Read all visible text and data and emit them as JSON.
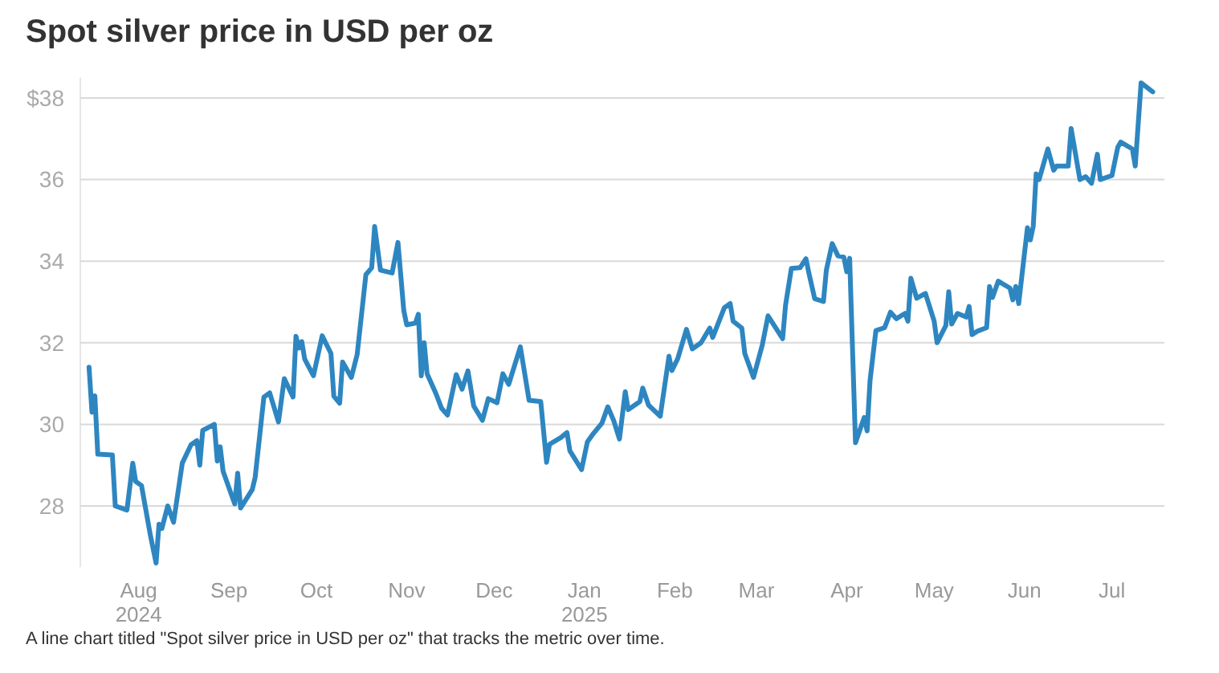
{
  "chart_data": {
    "type": "line",
    "title": "Spot silver price in USD per oz",
    "annotations": [
      "A line chart titled \"Spot silver price in USD per oz\" that tracks the metric over time."
    ],
    "x": [
      "2024-07-15",
      "2024-07-16",
      "2024-07-17",
      "2024-07-18",
      "2024-07-23",
      "2024-07-24",
      "2024-07-28",
      "2024-07-30",
      "2024-07-31",
      "2024-08-02",
      "2024-08-05",
      "2024-08-07",
      "2024-08-08",
      "2024-08-09",
      "2024-08-11",
      "2024-08-13",
      "2024-08-16",
      "2024-08-19",
      "2024-08-21",
      "2024-08-22",
      "2024-08-23",
      "2024-08-27",
      "2024-08-28",
      "2024-08-29",
      "2024-08-30",
      "2024-09-01",
      "2024-09-03",
      "2024-09-04",
      "2024-09-05",
      "2024-09-09",
      "2024-09-10",
      "2024-09-13",
      "2024-09-15",
      "2024-09-18",
      "2024-09-20",
      "2024-09-23",
      "2024-09-24",
      "2024-09-25",
      "2024-09-26",
      "2024-09-27",
      "2024-09-30",
      "2024-10-03",
      "2024-10-06",
      "2024-10-07",
      "2024-10-09",
      "2024-10-10",
      "2024-10-13",
      "2024-10-15",
      "2024-10-18",
      "2024-10-20",
      "2024-10-21",
      "2024-10-23",
      "2024-10-27",
      "2024-10-29",
      "2024-10-31",
      "2024-11-01",
      "2024-11-04",
      "2024-11-05",
      "2024-11-06",
      "2024-11-07",
      "2024-11-08",
      "2024-11-11",
      "2024-11-13",
      "2024-11-15",
      "2024-11-18",
      "2024-11-20",
      "2024-11-22",
      "2024-11-24",
      "2024-11-27",
      "2024-11-29",
      "2024-12-02",
      "2024-12-04",
      "2024-12-06",
      "2024-12-10",
      "2024-12-13",
      "2024-12-17",
      "2024-12-19",
      "2024-12-20",
      "2024-12-24",
      "2024-12-26",
      "2024-12-27",
      "2024-12-31",
      "2025-01-02",
      "2025-01-04",
      "2025-01-07",
      "2025-01-09",
      "2025-01-11",
      "2025-01-13",
      "2025-01-15",
      "2025-01-16",
      "2025-01-20",
      "2025-01-21",
      "2025-01-23",
      "2025-01-27",
      "2025-01-30",
      "2025-01-31",
      "2025-02-02",
      "2025-02-05",
      "2025-02-07",
      "2025-02-10",
      "2025-02-13",
      "2025-02-14",
      "2025-02-18",
      "2025-02-20",
      "2025-02-21",
      "2025-02-24",
      "2025-02-25",
      "2025-02-28",
      "2025-03-03",
      "2025-03-05",
      "2025-03-10",
      "2025-03-11",
      "2025-03-13",
      "2025-03-16",
      "2025-03-18",
      "2025-03-19",
      "2025-03-21",
      "2025-03-24",
      "2025-03-25",
      "2025-03-27",
      "2025-03-29",
      "2025-03-31",
      "2025-04-01",
      "2025-04-02",
      "2025-04-04",
      "2025-04-07",
      "2025-04-08",
      "2025-04-09",
      "2025-04-11",
      "2025-04-14",
      "2025-04-16",
      "2025-04-18",
      "2025-04-21",
      "2025-04-22",
      "2025-04-23",
      "2025-04-25",
      "2025-04-28",
      "2025-05-01",
      "2025-05-02",
      "2025-05-05",
      "2025-05-06",
      "2025-05-07",
      "2025-05-09",
      "2025-05-12",
      "2025-05-13",
      "2025-05-14",
      "2025-05-16",
      "2025-05-19",
      "2025-05-20",
      "2025-05-21",
      "2025-05-23",
      "2025-05-27",
      "2025-05-28",
      "2025-05-29",
      "2025-05-30",
      "2025-06-02",
      "2025-06-03",
      "2025-06-04",
      "2025-06-05",
      "2025-06-06",
      "2025-06-09",
      "2025-06-11",
      "2025-06-12",
      "2025-06-16",
      "2025-06-17",
      "2025-06-20",
      "2025-06-22",
      "2025-06-24",
      "2025-06-26",
      "2025-06-27",
      "2025-07-01",
      "2025-07-03",
      "2025-07-04",
      "2025-07-08",
      "2025-07-09",
      "2025-07-11",
      "2025-07-15"
    ],
    "series": [
      {
        "color": "#2e86c1",
        "values": [
          31.4,
          30.3,
          30.7,
          29.27,
          29.25,
          28.0,
          27.9,
          29.05,
          28.6,
          28.5,
          27.3,
          26.6,
          27.55,
          27.45,
          28.0,
          27.6,
          29.05,
          29.5,
          29.6,
          29.0,
          29.85,
          30.0,
          29.1,
          29.45,
          28.85,
          28.45,
          28.05,
          28.8,
          27.95,
          28.4,
          28.7,
          30.67,
          30.77,
          30.06,
          31.12,
          30.67,
          32.16,
          31.87,
          32.03,
          31.6,
          31.19,
          32.17,
          31.74,
          30.69,
          30.52,
          31.53,
          31.15,
          31.71,
          33.67,
          33.84,
          34.85,
          33.78,
          33.71,
          34.46,
          32.79,
          32.44,
          32.48,
          32.7,
          31.19,
          32.0,
          31.24,
          30.76,
          30.39,
          30.23,
          31.22,
          30.86,
          31.31,
          30.45,
          30.1,
          30.63,
          30.53,
          31.24,
          30.98,
          31.9,
          30.59,
          30.56,
          29.07,
          29.51,
          29.68,
          29.8,
          29.35,
          28.89,
          29.57,
          29.77,
          30.03,
          30.43,
          30.1,
          29.64,
          30.8,
          30.36,
          30.56,
          30.89,
          30.47,
          30.2,
          31.67,
          31.32,
          31.61,
          32.33,
          31.85,
          32.0,
          32.36,
          32.13,
          32.86,
          32.96,
          32.53,
          32.36,
          31.74,
          31.15,
          31.94,
          32.66,
          32.1,
          32.92,
          33.82,
          33.84,
          34.06,
          33.71,
          33.08,
          33.01,
          33.78,
          34.43,
          34.13,
          34.1,
          33.74,
          34.07,
          29.55,
          30.17,
          29.84,
          31.08,
          32.3,
          32.37,
          32.75,
          32.59,
          32.72,
          32.53,
          33.58,
          33.09,
          33.21,
          32.53,
          32.0,
          32.42,
          33.25,
          32.46,
          32.72,
          32.63,
          32.89,
          32.2,
          32.29,
          32.37,
          33.38,
          33.11,
          33.51,
          33.34,
          33.05,
          33.38,
          32.96,
          34.82,
          34.52,
          34.86,
          36.14,
          36.0,
          36.75,
          36.23,
          36.33,
          36.33,
          37.25,
          36.0,
          36.07,
          35.91,
          36.62,
          36.0,
          36.1,
          36.79,
          36.92,
          36.75,
          36.33,
          38.37,
          38.15
        ]
      }
    ],
    "xlim": [
      "2024-07-12",
      "2025-07-19"
    ],
    "xticks": [
      {
        "value": "2024-08-01",
        "label": "Aug\n2024"
      },
      {
        "value": "2024-09-01",
        "label": "Sep"
      },
      {
        "value": "2024-10-01",
        "label": "Oct"
      },
      {
        "value": "2024-11-01",
        "label": "Nov"
      },
      {
        "value": "2024-12-01",
        "label": "Dec"
      },
      {
        "value": "2025-01-01",
        "label": "Jan\n2025"
      },
      {
        "value": "2025-02-01",
        "label": "Feb"
      },
      {
        "value": "2025-03-01",
        "label": "Mar"
      },
      {
        "value": "2025-04-01",
        "label": "Apr"
      },
      {
        "value": "2025-05-01",
        "label": "May"
      },
      {
        "value": "2025-06-01",
        "label": "Jun"
      },
      {
        "value": "2025-07-01",
        "label": "Jul"
      }
    ],
    "ylim": [
      26.5,
      38.5
    ],
    "yticks": [
      {
        "value": 38,
        "label": "$38"
      },
      36,
      34,
      32,
      30,
      28
    ],
    "grid": "y"
  }
}
